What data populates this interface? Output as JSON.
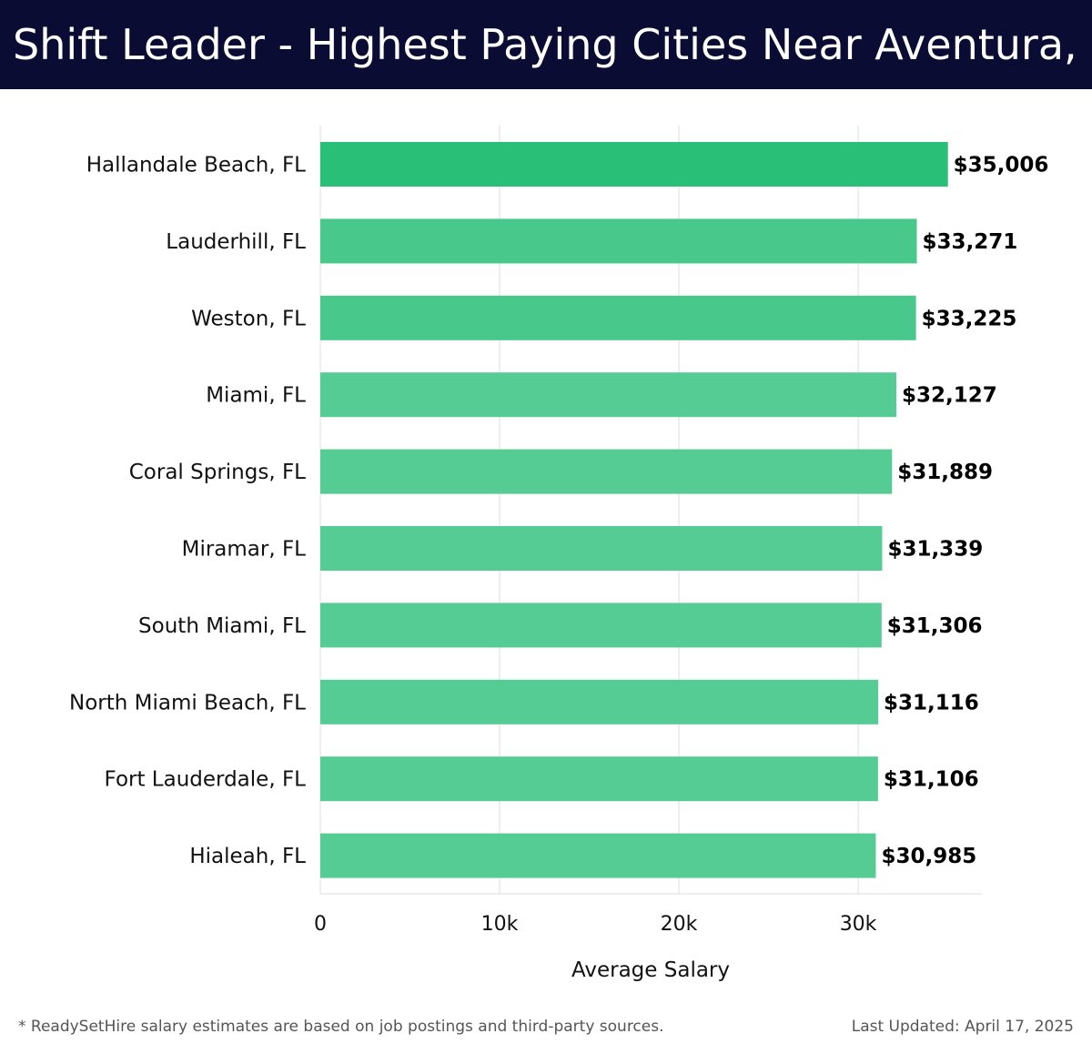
{
  "header": {
    "title": "Shift Leader - Highest Paying Cities Near Aventura, FL"
  },
  "footer": {
    "note": "* ReadySetHire salary estimates are based on job postings and third-party sources.",
    "updated": "Last Updated: April 17, 2025"
  },
  "colors": {
    "header_bg": "#0b0c33",
    "bar_top": "#2abf76",
    "bar_base": "#55cc94",
    "grid": "#dddddd"
  },
  "chart_data": {
    "type": "bar",
    "orientation": "horizontal",
    "categories": [
      "Hallandale Beach, FL",
      "Lauderhill, FL",
      "Weston, FL",
      "Miami, FL",
      "Coral Springs, FL",
      "Miramar, FL",
      "South Miami, FL",
      "North Miami Beach, FL",
      "Fort Lauderdale, FL",
      "Hialeah, FL"
    ],
    "values": [
      35006,
      33271,
      33225,
      32127,
      31889,
      31339,
      31306,
      31116,
      31106,
      30985
    ],
    "value_labels": [
      "$35,006",
      "$33,271",
      "$33,225",
      "$32,127",
      "$31,889",
      "$31,339",
      "$31,306",
      "$31,116",
      "$31,106",
      "$30,985"
    ],
    "xlabel": "Average Salary",
    "ylabel": "",
    "xlim": [
      0,
      36900
    ],
    "xticks": [
      0,
      10000,
      20000,
      30000
    ],
    "xtick_labels": [
      "0",
      "10k",
      "20k",
      "30k"
    ],
    "grid": true
  }
}
